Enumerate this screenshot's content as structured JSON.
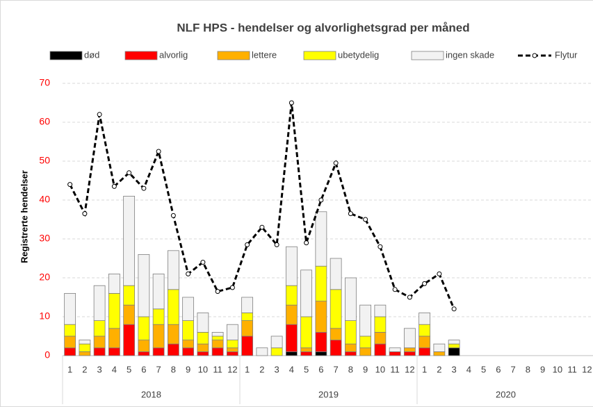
{
  "chart_data": {
    "type": "bar",
    "title": "NLF HPS - hendelser og alvorlighetsgrad per måned",
    "y_label": "Registrerte hendelser",
    "categories": [
      "1",
      "2",
      "3",
      "4",
      "5",
      "6",
      "7",
      "8",
      "9",
      "10",
      "11",
      "12",
      "1",
      "2",
      "3",
      "4",
      "5",
      "6",
      "7",
      "8",
      "9",
      "10",
      "11",
      "12",
      "1",
      "2",
      "3",
      "4",
      "5",
      "6",
      "7",
      "8",
      "9",
      "10",
      "11",
      "12"
    ],
    "groups": [
      "2018",
      "2019",
      "2020"
    ],
    "group_size": 12,
    "ylim": [
      0,
      70
    ],
    "yticks": [
      0,
      10,
      20,
      30,
      40,
      50,
      60,
      70
    ],
    "grid": true,
    "stacked": true,
    "legend": "top",
    "series": [
      {
        "name": "død",
        "color": "#000000",
        "values": [
          0,
          0,
          0,
          0,
          0,
          0,
          0,
          0,
          0,
          0,
          0,
          0,
          0,
          0,
          0,
          1,
          0,
          1,
          0,
          0,
          0,
          0,
          0,
          0,
          0,
          0,
          2,
          null,
          null,
          null,
          null,
          null,
          null,
          null,
          null,
          null
        ]
      },
      {
        "name": "alvorlig",
        "color": "#ff0000",
        "values": [
          2,
          0,
          2,
          2,
          8,
          1,
          2,
          3,
          2,
          1,
          2,
          1,
          5,
          0,
          0,
          7,
          1,
          5,
          4,
          1,
          0,
          3,
          1,
          1,
          2,
          0,
          0,
          null,
          null,
          null,
          null,
          null,
          null,
          null,
          null,
          null
        ]
      },
      {
        "name": "lettere",
        "color": "#ffb000",
        "values": [
          3,
          1,
          3,
          5,
          5,
          3,
          6,
          5,
          2,
          2,
          2,
          1,
          4,
          0,
          0,
          5,
          1,
          8,
          3,
          2,
          2,
          3,
          0,
          1,
          3,
          1,
          0,
          null,
          null,
          null,
          null,
          null,
          null,
          null,
          null,
          null
        ]
      },
      {
        "name": "ubetydelig",
        "color": "#ffff00",
        "values": [
          3,
          2,
          4,
          9,
          5,
          6,
          4,
          9,
          5,
          3,
          1,
          2,
          2,
          0,
          2,
          5,
          8,
          9,
          10,
          6,
          3,
          4,
          0,
          0,
          3,
          0,
          1,
          null,
          null,
          null,
          null,
          null,
          null,
          null,
          null,
          null
        ]
      },
      {
        "name": "ingen skade",
        "color": "#f2f2f2",
        "values": [
          8,
          1,
          9,
          5,
          23,
          16,
          9,
          10,
          6,
          5,
          1,
          4,
          4,
          2,
          3,
          10,
          12,
          14,
          8,
          11,
          8,
          3,
          1,
          5,
          3,
          2,
          1,
          null,
          null,
          null,
          null,
          null,
          null,
          null,
          null,
          null
        ]
      },
      {
        "name": "Flytur",
        "type": "line",
        "color": "#000000",
        "values": [
          44,
          36.5,
          62,
          43.5,
          47,
          43,
          52.5,
          36,
          21,
          24,
          16.5,
          17.5,
          28.5,
          33,
          28.5,
          65,
          29,
          40,
          49.5,
          36.5,
          35,
          28,
          17,
          15,
          18.5,
          21,
          12,
          null,
          null,
          null,
          null,
          null,
          null,
          null,
          null,
          null
        ]
      }
    ]
  }
}
